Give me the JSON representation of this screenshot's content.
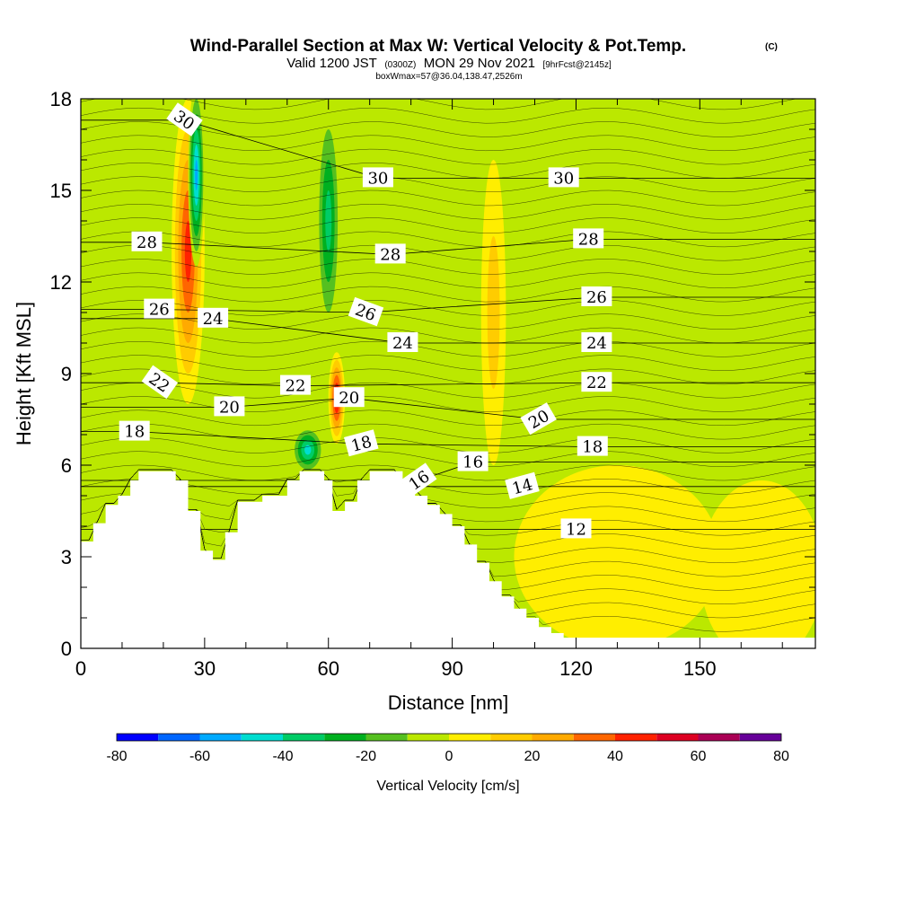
{
  "chart_data": {
    "type": "heatmap",
    "title": "Wind-Parallel Section at Max W: Vertical Velocity & Pot.Temp.",
    "title_mark": "(C)",
    "subtitle_main": "Valid 1200 JST",
    "subtitle_utc": "(0300Z)",
    "subtitle_date": "MON 29 Nov 2021",
    "subtitle_fcst": "[9hrFcst@2145z]",
    "box_info": "boxWmax=57@36.04,138.47,2526m",
    "xlabel": "Distance [nm]",
    "ylabel": "Height [Kft MSL]",
    "xlim": [
      0,
      178
    ],
    "ylim": [
      0,
      18
    ],
    "x_ticks": [
      "0",
      "30",
      "60",
      "90",
      "120",
      "150"
    ],
    "y_ticks": [
      "0",
      "3",
      "6",
      "9",
      "12",
      "15",
      "18"
    ],
    "colorbar": {
      "label": "Vertical Velocity [cm/s]",
      "min": -80,
      "max": 80,
      "ticks": [
        "-80",
        "-60",
        "-40",
        "-20",
        "0",
        "20",
        "40",
        "60",
        "80"
      ],
      "colors": [
        "#0000ff",
        "#0066ff",
        "#00aaff",
        "#00ddd0",
        "#00cc66",
        "#00b020",
        "#55c020",
        "#bbe800",
        "#ffee00",
        "#ffcc00",
        "#ffaa00",
        "#ff6600",
        "#ff2200",
        "#dd0022",
        "#aa0055",
        "#660099"
      ]
    },
    "terrain": [
      [
        0,
        3.5
      ],
      [
        3,
        3.5
      ],
      [
        3,
        4.1
      ],
      [
        6,
        4.1
      ],
      [
        6,
        4.7
      ],
      [
        9,
        4.7
      ],
      [
        9,
        5.0
      ],
      [
        12,
        5.0
      ],
      [
        12,
        5.5
      ],
      [
        14,
        5.5
      ],
      [
        14,
        5.8
      ],
      [
        23,
        5.8
      ],
      [
        23,
        5.5
      ],
      [
        26,
        5.5
      ],
      [
        26,
        4.5
      ],
      [
        29,
        4.5
      ],
      [
        29,
        3.2
      ],
      [
        32,
        3.2
      ],
      [
        32,
        2.9
      ],
      [
        35,
        2.9
      ],
      [
        35,
        3.8
      ],
      [
        38,
        3.8
      ],
      [
        38,
        4.8
      ],
      [
        44,
        4.8
      ],
      [
        44,
        5.0
      ],
      [
        50,
        5.0
      ],
      [
        50,
        5.5
      ],
      [
        53,
        5.5
      ],
      [
        53,
        5.8
      ],
      [
        59,
        5.8
      ],
      [
        59,
        5.5
      ],
      [
        61,
        5.5
      ],
      [
        61,
        4.5
      ],
      [
        64,
        4.5
      ],
      [
        64,
        4.8
      ],
      [
        67,
        4.8
      ],
      [
        67,
        5.5
      ],
      [
        70,
        5.5
      ],
      [
        70,
        5.8
      ],
      [
        78,
        5.8
      ],
      [
        78,
        5.4
      ],
      [
        81,
        5.4
      ],
      [
        81,
        5.0
      ],
      [
        84,
        5.0
      ],
      [
        84,
        4.7
      ],
      [
        87,
        4.7
      ],
      [
        87,
        4.4
      ],
      [
        90,
        4.4
      ],
      [
        90,
        4.0
      ],
      [
        93,
        4.0
      ],
      [
        93,
        3.4
      ],
      [
        96,
        3.4
      ],
      [
        96,
        2.8
      ],
      [
        99,
        2.8
      ],
      [
        99,
        2.2
      ],
      [
        102,
        2.2
      ],
      [
        102,
        1.7
      ],
      [
        105,
        1.7
      ],
      [
        105,
        1.3
      ],
      [
        108,
        1.3
      ],
      [
        108,
        1.0
      ],
      [
        111,
        1.0
      ],
      [
        111,
        0.7
      ],
      [
        114,
        0.7
      ],
      [
        114,
        0.5
      ],
      [
        117,
        0.5
      ],
      [
        117,
        0.35
      ],
      [
        178,
        0.35
      ],
      [
        178,
        0
      ]
    ],
    "features": [
      {
        "cx": 26,
        "cy": 13,
        "value": 45,
        "rx": 4,
        "ry": 5
      },
      {
        "cx": 28,
        "cy": 15.5,
        "value": -60,
        "rx": 2,
        "ry": 3
      },
      {
        "cx": 60,
        "cy": 14,
        "value": -35,
        "rx": 3,
        "ry": 4
      },
      {
        "cx": 62,
        "cy": 8.2,
        "value": 55,
        "rx": 2,
        "ry": 1.5
      },
      {
        "cx": 55,
        "cy": 6.5,
        "value": -50,
        "rx": 4,
        "ry": 0.8
      },
      {
        "cx": 100,
        "cy": 11,
        "value": 20,
        "rx": 3,
        "ry": 5
      },
      {
        "cx": 130,
        "cy": 3,
        "value": 8,
        "rx": 25,
        "ry": 3
      },
      {
        "cx": 165,
        "cy": 2.5,
        "value": 5,
        "rx": 15,
        "ry": 3
      }
    ],
    "theta_labels": [
      {
        "text": "30",
        "x": 25,
        "y": 17.3,
        "angle": 35
      },
      {
        "text": "30",
        "x": 72,
        "y": 15.4,
        "angle": 0
      },
      {
        "text": "30",
        "x": 117,
        "y": 15.4,
        "angle": 0
      },
      {
        "text": "28",
        "x": 16,
        "y": 13.3,
        "angle": 0
      },
      {
        "text": "28",
        "x": 75,
        "y": 12.9,
        "angle": 0
      },
      {
        "text": "28",
        "x": 123,
        "y": 13.4,
        "angle": 0
      },
      {
        "text": "26",
        "x": 19,
        "y": 11.1,
        "angle": 0
      },
      {
        "text": "26",
        "x": 69,
        "y": 11.0,
        "angle": 20
      },
      {
        "text": "26",
        "x": 125,
        "y": 11.5,
        "angle": 0
      },
      {
        "text": "24",
        "x": 32,
        "y": 10.8,
        "angle": 0
      },
      {
        "text": "24",
        "x": 78,
        "y": 10.0,
        "angle": 0
      },
      {
        "text": "24",
        "x": 125,
        "y": 10.0,
        "angle": 0
      },
      {
        "text": "22",
        "x": 19,
        "y": 8.7,
        "angle": 35
      },
      {
        "text": "22",
        "x": 52,
        "y": 8.6,
        "angle": 0
      },
      {
        "text": "22",
        "x": 125,
        "y": 8.7,
        "angle": 0
      },
      {
        "text": "20",
        "x": 36,
        "y": 7.9,
        "angle": 0
      },
      {
        "text": "20",
        "x": 65,
        "y": 8.2,
        "angle": 0
      },
      {
        "text": "20",
        "x": 111,
        "y": 7.5,
        "angle": -30
      },
      {
        "text": "18",
        "x": 13,
        "y": 7.1,
        "angle": 0
      },
      {
        "text": "18",
        "x": 68,
        "y": 6.7,
        "angle": -15
      },
      {
        "text": "18",
        "x": 124,
        "y": 6.6,
        "angle": 0
      },
      {
        "text": "16",
        "x": 82,
        "y": 5.5,
        "angle": -35
      },
      {
        "text": "16",
        "x": 95,
        "y": 6.1,
        "angle": 0
      },
      {
        "text": "14",
        "x": 107,
        "y": 5.3,
        "angle": -15
      },
      {
        "text": "12",
        "x": 120,
        "y": 3.9,
        "angle": 0
      }
    ]
  }
}
